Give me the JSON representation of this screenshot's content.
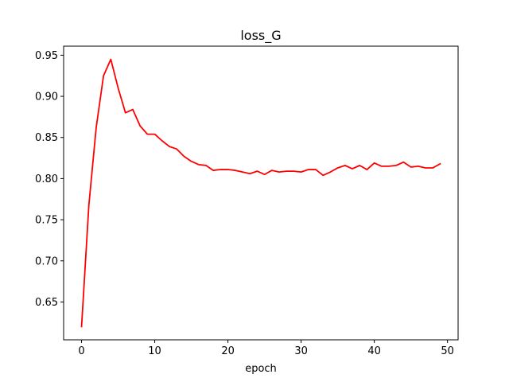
{
  "chart_data": {
    "type": "line",
    "title": "loss_G",
    "xlabel": "epoch",
    "ylabel": "",
    "xlim": [
      -2.45,
      51.45
    ],
    "ylim": [
      0.604,
      0.961
    ],
    "grid": false,
    "legend": "none",
    "x_ticks": [
      0,
      10,
      20,
      30,
      40,
      50
    ],
    "x_tick_labels": [
      "0",
      "10",
      "20",
      "30",
      "40",
      "50"
    ],
    "y_ticks": [
      0.65,
      0.7,
      0.75,
      0.8,
      0.85,
      0.9,
      0.95
    ],
    "y_tick_labels": [
      "0.65",
      "0.70",
      "0.75",
      "0.80",
      "0.85",
      "0.90",
      "0.95"
    ],
    "series": [
      {
        "color": "#ff0000",
        "x": [
          0,
          1,
          2,
          3,
          4,
          5,
          6,
          7,
          8,
          9,
          10,
          11,
          12,
          13,
          14,
          15,
          16,
          17,
          18,
          19,
          20,
          21,
          22,
          23,
          24,
          25,
          26,
          27,
          28,
          29,
          30,
          31,
          32,
          33,
          34,
          35,
          36,
          37,
          38,
          39,
          40,
          41,
          42,
          43,
          44,
          45,
          46,
          47,
          48,
          49
        ],
        "values": [
          0.62,
          0.768,
          0.862,
          0.925,
          0.945,
          0.91,
          0.88,
          0.884,
          0.864,
          0.854,
          0.854,
          0.846,
          0.839,
          0.836,
          0.827,
          0.821,
          0.817,
          0.816,
          0.81,
          0.811,
          0.811,
          0.81,
          0.808,
          0.806,
          0.809,
          0.805,
          0.81,
          0.808,
          0.809,
          0.809,
          0.808,
          0.811,
          0.811,
          0.804,
          0.808,
          0.813,
          0.816,
          0.812,
          0.816,
          0.811,
          0.819,
          0.815,
          0.815,
          0.816,
          0.82,
          0.814,
          0.815,
          0.813,
          0.813,
          0.818
        ]
      }
    ]
  }
}
